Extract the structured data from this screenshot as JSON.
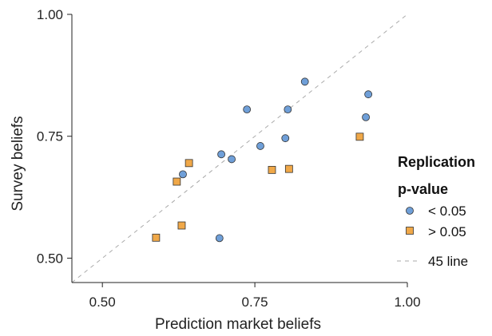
{
  "chart_data": {
    "type": "scatter",
    "xlabel": "Prediction market beliefs",
    "ylabel": "Survey beliefs",
    "xlim": [
      0.45,
      1.0
    ],
    "ylim": [
      0.45,
      1.0
    ],
    "x_ticks": [
      "0.50",
      "0.75",
      "1.00"
    ],
    "y_ticks": [
      "0.50",
      "0.75",
      "1.00"
    ],
    "x_tick_values": [
      0.5,
      0.75,
      1.0
    ],
    "y_tick_values": [
      0.5,
      0.75,
      1.0
    ],
    "grid": false,
    "legend_position": "right",
    "legend_title_line1": "Replication",
    "legend_title_line2": "p-value",
    "series": [
      {
        "name": "< 0.05",
        "marker": "circle",
        "color": "#6f9fd8",
        "points": [
          {
            "x": 0.632,
            "y": 0.672
          },
          {
            "x": 0.695,
            "y": 0.713
          },
          {
            "x": 0.692,
            "y": 0.541
          },
          {
            "x": 0.712,
            "y": 0.703
          },
          {
            "x": 0.737,
            "y": 0.805
          },
          {
            "x": 0.759,
            "y": 0.73
          },
          {
            "x": 0.8,
            "y": 0.746
          },
          {
            "x": 0.804,
            "y": 0.805
          },
          {
            "x": 0.832,
            "y": 0.862
          },
          {
            "x": 0.932,
            "y": 0.789
          },
          {
            "x": 0.936,
            "y": 0.836
          }
        ]
      },
      {
        "name": "> 0.05",
        "marker": "square",
        "color": "#f0a848",
        "points": [
          {
            "x": 0.588,
            "y": 0.542
          },
          {
            "x": 0.622,
            "y": 0.657
          },
          {
            "x": 0.63,
            "y": 0.567
          },
          {
            "x": 0.642,
            "y": 0.695
          },
          {
            "x": 0.778,
            "y": 0.681
          },
          {
            "x": 0.806,
            "y": 0.683
          },
          {
            "x": 0.922,
            "y": 0.749
          }
        ]
      }
    ],
    "reference_line": {
      "name": "45 line",
      "color": "#aaaaaa"
    }
  }
}
